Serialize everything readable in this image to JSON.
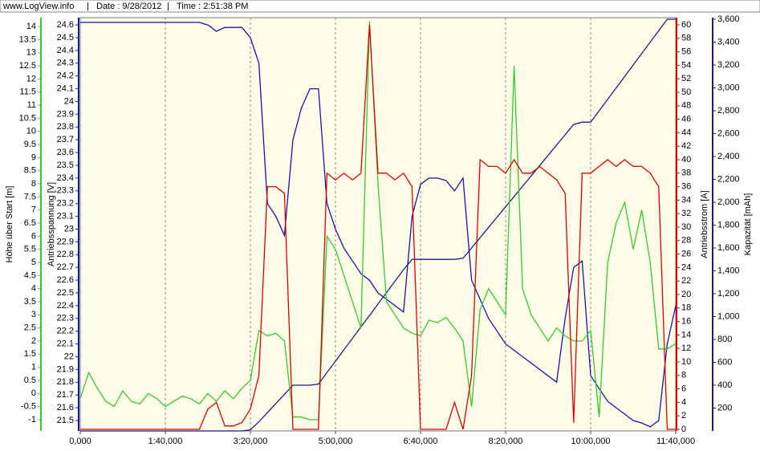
{
  "header": {
    "site": "www.LogView.info",
    "date": "Date : 9/28/2012",
    "time": "Time : 2:51:38 PM"
  },
  "chart_data": {
    "type": "line",
    "ylabel": "Höhe über Start [m]",
    "y2label": "Antriebsspannung [V]",
    "y3label": "Antriebsstrom [A]",
    "y4label": "Kapazität [mAh]",
    "xlim": [
      0,
      700
    ],
    "xticks": [
      {
        "value": 0,
        "label": "0,000"
      },
      {
        "value": 100,
        "label": "1:40,000"
      },
      {
        "value": 200,
        "label": "3:20,000"
      },
      {
        "value": 300,
        "label": "5:00,000"
      },
      {
        "value": 400,
        "label": "6:40,000"
      },
      {
        "value": 500,
        "label": "8:20,000"
      },
      {
        "value": 600,
        "label": "10:00,000"
      },
      {
        "value": 700,
        "label": "11:40,000"
      }
    ],
    "grid": true,
    "ylim": [
      -1.43,
      14.34
    ],
    "yticks": [
      -1,
      -0.5,
      0,
      0.5,
      1,
      1.5,
      2,
      2.5,
      3,
      3.5,
      4,
      4.5,
      5,
      5.5,
      6,
      6.5,
      7,
      7.5,
      8,
      8.5,
      9,
      9.5,
      10,
      10.5,
      11,
      11.5,
      12,
      12.5,
      13,
      13.5,
      14
    ],
    "y2lim": [
      21.418,
      24.657
    ],
    "y2ticks": [
      21.5,
      21.6,
      21.7,
      21.8,
      21.9,
      22,
      22.1,
      22.2,
      22.3,
      22.4,
      22.5,
      22.6,
      22.7,
      22.8,
      22.9,
      23,
      23.1,
      23.2,
      23.3,
      23.4,
      23.5,
      23.6,
      23.7,
      23.8,
      23.9,
      24,
      24.1,
      24.2,
      24.3,
      24.4,
      24.5,
      24.6
    ],
    "y3lim": [
      -0.24,
      61.07
    ],
    "y3ticks": [
      0,
      2,
      4,
      6,
      8,
      10,
      12,
      14,
      16,
      18,
      20,
      22,
      24,
      26,
      28,
      30,
      32,
      34,
      36,
      38,
      40,
      42,
      44,
      46,
      48,
      50,
      52,
      54,
      56,
      58,
      60
    ],
    "y4lim": [
      0,
      3614
    ],
    "y4ticks": [
      200,
      400,
      600,
      800,
      {
        "value": 1000,
        "label": "1,000"
      },
      {
        "value": 1200,
        "label": "1,200"
      },
      {
        "value": 1400,
        "label": "1,400"
      },
      {
        "value": 1600,
        "label": "1,600"
      },
      {
        "value": 1800,
        "label": "1,800"
      },
      {
        "value": 2000,
        "label": "2,000"
      },
      {
        "value": 2200,
        "label": "2,200"
      },
      {
        "value": 2400,
        "label": "2,400"
      },
      {
        "value": 2600,
        "label": "2,600"
      },
      {
        "value": 2800,
        "label": "2,800"
      },
      {
        "value": 3000,
        "label": "3,000"
      },
      {
        "value": 3200,
        "label": "3,200"
      },
      {
        "value": 3400,
        "label": "3,400"
      },
      {
        "value": 3600,
        "label": "3,600"
      }
    ],
    "x": [
      0,
      10,
      20,
      30,
      40,
      50,
      60,
      70,
      80,
      90,
      100,
      110,
      120,
      130,
      140,
      150,
      160,
      170,
      180,
      190,
      200,
      210,
      220,
      230,
      240,
      250,
      260,
      270,
      280,
      290,
      300,
      310,
      320,
      330,
      340,
      350,
      360,
      370,
      380,
      390,
      400,
      410,
      420,
      430,
      440,
      450,
      460,
      470,
      480,
      490,
      500,
      510,
      520,
      530,
      540,
      550,
      560,
      570,
      580,
      590,
      600,
      610,
      620,
      630,
      640,
      650,
      660,
      670,
      680,
      690,
      700
    ],
    "series": [
      {
        "axis": "y4",
        "color": "#1c1c8e",
        "values": [
          0,
          0,
          0,
          0,
          0,
          0,
          0,
          0,
          0,
          0,
          0,
          0,
          0,
          0,
          0,
          0,
          0,
          0,
          0,
          0,
          10,
          80,
          160,
          240,
          320,
          400,
          400,
          400,
          410,
          510,
          610,
          710,
          810,
          910,
          1010,
          1110,
          1210,
          1310,
          1410,
          1500,
          1500,
          1500,
          1500,
          1500,
          1500,
          1510,
          1600,
          1690,
          1780,
          1870,
          1960,
          2050,
          2140,
          2230,
          2320,
          2410,
          2500,
          2590,
          2680,
          2700,
          2700,
          2800,
          2900,
          3000,
          3100,
          3200,
          3300,
          3400,
          3500,
          3600,
          3600
        ]
      },
      {
        "axis": "y2",
        "color": "#1414b4",
        "values": [
          24.62,
          24.62,
          24.62,
          24.62,
          24.62,
          24.62,
          24.62,
          24.62,
          24.62,
          24.62,
          24.62,
          24.62,
          24.62,
          24.62,
          24.62,
          24.6,
          24.55,
          24.58,
          24.58,
          24.58,
          24.5,
          24.3,
          23.2,
          23.1,
          22.95,
          23.7,
          23.95,
          24.1,
          24.1,
          23.2,
          23.0,
          22.85,
          22.75,
          22.65,
          22.6,
          22.5,
          22.45,
          22.4,
          22.35,
          23.1,
          23.35,
          23.4,
          23.4,
          23.38,
          23.3,
          23.4,
          22.6,
          22.45,
          22.3,
          22.2,
          22.1,
          22.05,
          22.0,
          21.95,
          21.9,
          21.85,
          21.8,
          22.3,
          22.7,
          22.75,
          21.85,
          21.75,
          21.65,
          21.6,
          21.55,
          21.5,
          21.48,
          21.45,
          21.5,
          22.1,
          22.4
        ]
      },
      {
        "axis": "y",
        "color": "#2ecc2e",
        "values": [
          -0.2,
          0.8,
          0.2,
          -0.3,
          -0.5,
          0.1,
          -0.3,
          -0.4,
          0,
          -0.2,
          -0.5,
          -0.3,
          -0.1,
          -0.2,
          -0.4,
          0,
          -0.3,
          0.1,
          -0.2,
          0.2,
          0.5,
          2.4,
          2.2,
          2.3,
          2.0,
          -0.9,
          -0.9,
          -1,
          -1,
          6.0,
          5.5,
          4.5,
          3.5,
          2.5,
          14.2,
          8,
          3.5,
          3,
          2.5,
          2.3,
          2.2,
          2.8,
          2.7,
          2.9,
          2.5,
          2.0,
          -0.5,
          3.2,
          4,
          3.5,
          3.0,
          12.5,
          4,
          3,
          2.5,
          2.0,
          2.5,
          2.2,
          2.0,
          2.0,
          2.4,
          -0.9,
          5,
          6.5,
          7.3,
          5.5,
          7,
          5,
          1.7,
          1.7,
          1.9
        ]
      },
      {
        "axis": "y3",
        "color": "#e00000",
        "values": [
          0,
          0,
          0,
          0,
          0,
          0,
          0,
          0,
          0,
          0,
          0,
          0,
          0,
          0,
          0,
          3,
          4,
          0.5,
          0.5,
          1,
          3,
          8,
          36,
          36,
          35,
          0,
          0,
          0,
          0,
          38,
          37,
          38,
          37,
          38,
          60,
          38,
          38,
          37,
          38,
          36,
          0,
          0,
          0,
          0,
          4,
          0,
          8,
          40,
          39,
          39,
          38,
          40,
          38,
          38,
          39,
          38,
          37,
          35,
          1,
          38,
          38,
          39,
          40,
          39,
          40,
          39,
          39,
          38,
          36,
          0,
          0
        ]
      }
    ]
  }
}
